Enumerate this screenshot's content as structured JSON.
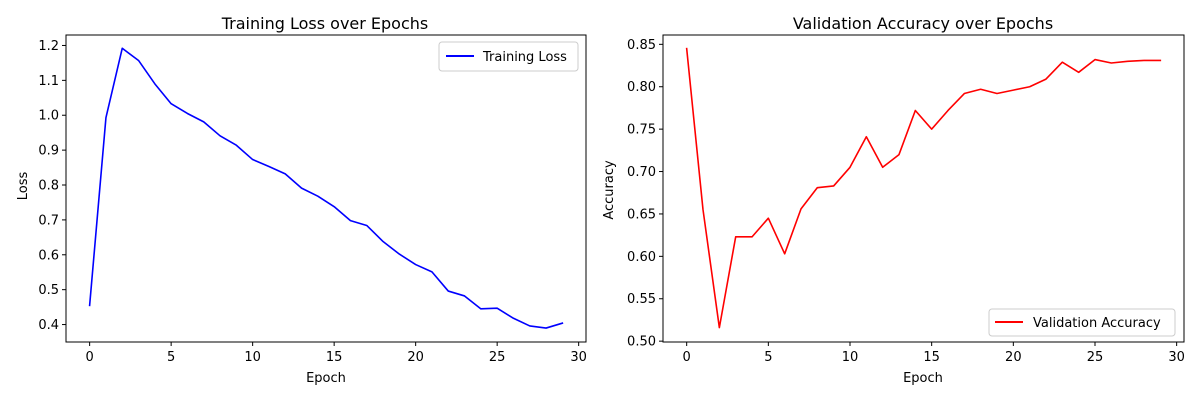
{
  "chart_data": [
    {
      "type": "line",
      "title": "Training Loss over Epochs",
      "xlabel": "Epoch",
      "ylabel": "Loss",
      "xlim": [
        -1.45,
        30.45
      ],
      "ylim": [
        0.35,
        1.23
      ],
      "xticks": [
        0,
        5,
        10,
        15,
        20,
        25,
        30
      ],
      "yticks": [
        0.4,
        0.5,
        0.6,
        0.7,
        0.8,
        0.9,
        1.0,
        1.1,
        1.2
      ],
      "ytick_decimals": 1,
      "grid": false,
      "legend_position": "top-right",
      "x": [
        0,
        1,
        2,
        3,
        4,
        5,
        6,
        7,
        8,
        9,
        10,
        11,
        12,
        13,
        14,
        15,
        16,
        17,
        18,
        19,
        20,
        21,
        22,
        23,
        24,
        25,
        26,
        27,
        28,
        29
      ],
      "series": [
        {
          "name": "Training Loss",
          "color": "#0000ff",
          "values": [
            0.455,
            0.993,
            1.192,
            1.157,
            1.09,
            1.033,
            1.005,
            0.981,
            0.941,
            0.914,
            0.873,
            0.853,
            0.832,
            0.791,
            0.768,
            0.738,
            0.698,
            0.684,
            0.638,
            0.602,
            0.572,
            0.551,
            0.496,
            0.482,
            0.445,
            0.447,
            0.418,
            0.396,
            0.39,
            0.404
          ]
        }
      ]
    },
    {
      "type": "line",
      "title": "Validation Accuracy over Epochs",
      "xlabel": "Epoch",
      "ylabel": "Accuracy",
      "xlim": [
        -1.45,
        30.45
      ],
      "ylim": [
        0.499,
        0.861
      ],
      "xticks": [
        0,
        5,
        10,
        15,
        20,
        25,
        30
      ],
      "yticks": [
        0.5,
        0.55,
        0.6,
        0.65,
        0.7,
        0.75,
        0.8,
        0.85
      ],
      "ytick_decimals": 2,
      "grid": false,
      "legend_position": "bottom-right",
      "x": [
        0,
        1,
        2,
        3,
        4,
        5,
        6,
        7,
        8,
        9,
        10,
        11,
        12,
        13,
        14,
        15,
        16,
        17,
        18,
        19,
        20,
        21,
        22,
        23,
        24,
        25,
        26,
        27,
        28,
        29
      ],
      "series": [
        {
          "name": "Validation Accuracy",
          "color": "#ff0000",
          "values": [
            0.845,
            0.655,
            0.516,
            0.623,
            0.623,
            0.645,
            0.603,
            0.656,
            0.681,
            0.683,
            0.705,
            0.741,
            0.705,
            0.72,
            0.772,
            0.75,
            0.772,
            0.792,
            0.797,
            0.792,
            0.796,
            0.8,
            0.809,
            0.829,
            0.817,
            0.832,
            0.828,
            0.83,
            0.831,
            0.831
          ]
        }
      ]
    }
  ]
}
